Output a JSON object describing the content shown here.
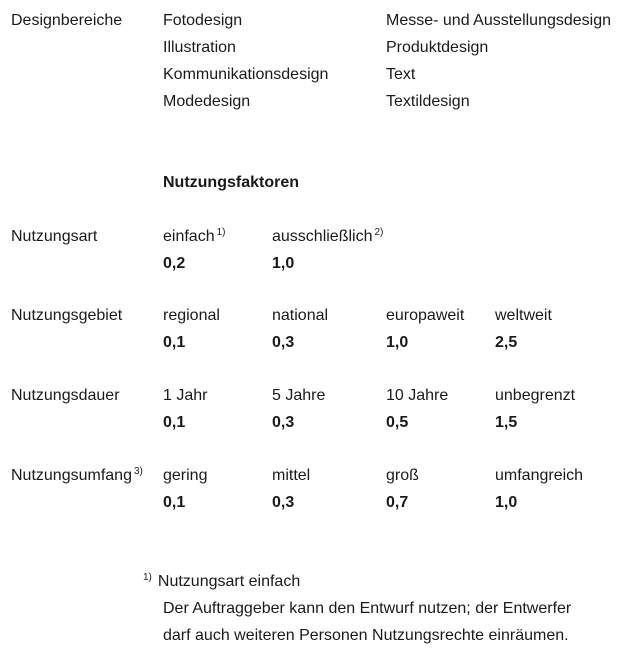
{
  "designbereiche": {
    "label": "Designbereiche",
    "col1": [
      "Fotodesign",
      "Illustration",
      "Kommunikationsdesign",
      "Modedesign"
    ],
    "col2": [
      "Messe- und Ausstellungsdesign",
      "Produktdesign",
      "Text",
      "Textildesign"
    ]
  },
  "heading": "Nutzungsfaktoren",
  "factors": [
    {
      "label": "Nutzungsart",
      "label_sup": "",
      "options": [
        {
          "name": "einfach",
          "sup": "1)",
          "value": "0,2"
        },
        {
          "name": "ausschließlich",
          "sup": "2)",
          "value": "1,0"
        }
      ]
    },
    {
      "label": "Nutzungsgebiet",
      "label_sup": "",
      "options": [
        {
          "name": "regional",
          "sup": "",
          "value": "0,1"
        },
        {
          "name": "national",
          "sup": "",
          "value": "0,3"
        },
        {
          "name": "europaweit",
          "sup": "",
          "value": "1,0"
        },
        {
          "name": "weltweit",
          "sup": "",
          "value": "2,5"
        }
      ]
    },
    {
      "label": "Nutzungsdauer",
      "label_sup": "",
      "options": [
        {
          "name": "1 Jahr",
          "sup": "",
          "value": "0,1"
        },
        {
          "name": "5 Jahre",
          "sup": "",
          "value": "0,3"
        },
        {
          "name": "10 Jahre",
          "sup": "",
          "value": "0,5"
        },
        {
          "name": "unbegrenzt",
          "sup": "",
          "value": "1,5"
        }
      ]
    },
    {
      "label": "Nutzungsumfang",
      "label_sup": "3)",
      "options": [
        {
          "name": "gering",
          "sup": "",
          "value": "0,1"
        },
        {
          "name": "mittel",
          "sup": "",
          "value": "0,3"
        },
        {
          "name": "groß",
          "sup": "",
          "value": "0,7"
        },
        {
          "name": "umfangreich",
          "sup": "",
          "value": "1,0"
        }
      ]
    }
  ],
  "footnote": {
    "marker": "1)",
    "title": "Nutzungsart einfach",
    "lines": [
      "Der Auftraggeber kann den Entwurf nutzen; der Entwerfer",
      "darf auch weiteren Personen Nutzungsrechte einräumen."
    ]
  }
}
